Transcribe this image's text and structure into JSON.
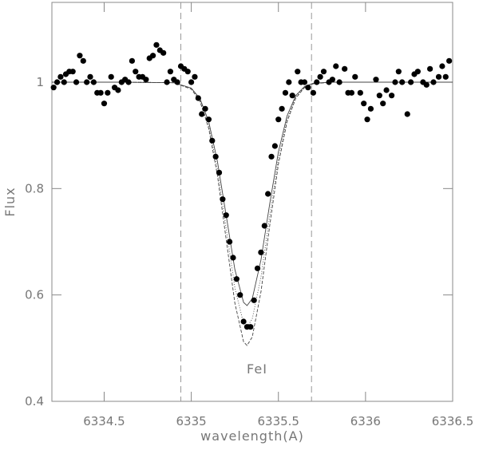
{
  "chart_data": {
    "type": "scatter",
    "x_label": "wavelength(A)",
    "y_label": "Flux",
    "annotation": "FeI",
    "xlim": [
      6334.2,
      6336.5
    ],
    "ylim": [
      0.4,
      1.15
    ],
    "xticks": [
      6334.5,
      6335,
      6335.5,
      6336,
      6336.5
    ],
    "yticks": [
      0.4,
      0.6,
      0.8,
      1
    ],
    "vlines": [
      6334.94,
      6335.69
    ],
    "series": [
      {
        "type": "scatter",
        "color": "#000000",
        "x": [
          6334.21,
          6334.23,
          6334.25,
          6334.27,
          6334.28,
          6334.3,
          6334.32,
          6334.34,
          6334.36,
          6334.38,
          6334.4,
          6334.42,
          6334.44,
          6334.46,
          6334.48,
          6334.5,
          6334.52,
          6334.54,
          6334.56,
          6334.58,
          6334.6,
          6334.62,
          6334.64,
          6334.66,
          6334.68,
          6334.7,
          6334.72,
          6334.74,
          6334.76,
          6334.78,
          6334.8,
          6334.82,
          6334.84,
          6334.86,
          6334.88,
          6334.9,
          6334.92,
          6334.94,
          6334.96,
          6334.98,
          6335.0,
          6335.02,
          6335.04,
          6335.06,
          6335.08,
          6335.1,
          6335.12,
          6335.14,
          6335.16,
          6335.18,
          6335.2,
          6335.22,
          6335.24,
          6335.26,
          6335.28,
          6335.3,
          6335.32,
          6335.34,
          6335.36,
          6335.38,
          6335.4,
          6335.42,
          6335.44,
          6335.46,
          6335.48,
          6335.5,
          6335.52,
          6335.54,
          6335.56,
          6335.58,
          6335.61,
          6335.63,
          6335.65,
          6335.67,
          6335.7,
          6335.72,
          6335.74,
          6335.76,
          6335.79,
          6335.81,
          6335.83,
          6335.85,
          6335.88,
          6335.9,
          6335.92,
          6335.94,
          6335.97,
          6335.99,
          6336.01,
          6336.03,
          6336.06,
          6336.08,
          6336.1,
          6336.12,
          6336.15,
          6336.17,
          6336.19,
          6336.21,
          6336.24,
          6336.26,
          6336.28,
          6336.3,
          6336.33,
          6336.35,
          6336.37,
          6336.39,
          6336.42,
          6336.44,
          6336.46,
          6336.48
        ],
        "values": [
          0.99,
          1.0,
          1.01,
          1.0,
          1.015,
          1.02,
          1.02,
          1.0,
          1.05,
          1.04,
          1.0,
          1.01,
          1.0,
          0.98,
          0.98,
          0.96,
          0.98,
          1.01,
          0.99,
          0.985,
          1.0,
          1.005,
          1.0,
          1.04,
          1.02,
          1.01,
          1.01,
          1.005,
          1.045,
          1.05,
          1.07,
          1.06,
          1.055,
          1.0,
          1.02,
          1.005,
          1.0,
          1.03,
          1.025,
          1.02,
          1.0,
          1.01,
          0.97,
          0.94,
          0.95,
          0.93,
          0.89,
          0.86,
          0.83,
          0.78,
          0.75,
          0.7,
          0.67,
          0.63,
          0.6,
          0.55,
          0.54,
          0.54,
          0.59,
          0.65,
          0.68,
          0.73,
          0.79,
          0.86,
          0.88,
          0.93,
          0.95,
          0.98,
          1.0,
          0.975,
          1.02,
          1.0,
          1.0,
          0.99,
          0.98,
          1.0,
          1.01,
          1.02,
          1.0,
          1.005,
          1.03,
          1.0,
          1.025,
          0.98,
          0.98,
          1.01,
          0.98,
          0.96,
          0.93,
          0.95,
          1.005,
          0.975,
          0.96,
          0.985,
          0.975,
          1.0,
          1.02,
          1.0,
          0.94,
          1.0,
          1.015,
          1.02,
          1.0,
          0.995,
          1.025,
          1.0,
          1.01,
          1.03,
          1.01,
          1.04
        ]
      },
      {
        "type": "line",
        "color": "#444444",
        "x": [
          6334.2,
          6334.6,
          6334.9,
          6335.0,
          6335.05,
          6335.1,
          6335.15,
          6335.2,
          6335.25,
          6335.3,
          6335.32,
          6335.35,
          6335.4,
          6335.45,
          6335.5,
          6335.55,
          6335.6,
          6335.65,
          6335.7,
          6335.8,
          6336.1,
          6336.5
        ],
        "values": [
          1,
          1,
          0.999,
          0.987,
          0.964,
          0.913,
          0.825,
          0.705,
          0.585,
          0.512,
          0.505,
          0.521,
          0.606,
          0.73,
          0.846,
          0.926,
          0.97,
          0.99,
          0.997,
          1,
          1,
          1
        ]
      },
      {
        "type": "line",
        "color": "#444444",
        "x": [
          6334.2,
          6334.6,
          6334.9,
          6335.0,
          6335.05,
          6335.1,
          6335.15,
          6335.2,
          6335.25,
          6335.3,
          6335.32,
          6335.35,
          6335.4,
          6335.45,
          6335.5,
          6335.55,
          6335.6,
          6335.65,
          6335.7,
          6335.8,
          6336.1,
          6336.5
        ],
        "values": [
          1,
          1,
          0.999,
          0.988,
          0.966,
          0.919,
          0.837,
          0.726,
          0.614,
          0.546,
          0.54,
          0.555,
          0.634,
          0.749,
          0.856,
          0.931,
          0.972,
          0.991,
          0.997,
          1,
          1,
          1
        ]
      },
      {
        "type": "line",
        "color": "#444444",
        "x": [
          6334.2,
          6334.6,
          6334.9,
          6335.0,
          6335.05,
          6335.1,
          6335.15,
          6335.2,
          6335.25,
          6335.3,
          6335.32,
          6335.35,
          6335.4,
          6335.45,
          6335.5,
          6335.55,
          6335.6,
          6335.65,
          6335.7,
          6335.8,
          6336.1,
          6336.5
        ],
        "values": [
          1,
          1,
          0.999,
          0.989,
          0.969,
          0.926,
          0.851,
          0.75,
          0.648,
          0.586,
          0.58,
          0.593,
          0.666,
          0.771,
          0.869,
          0.937,
          0.975,
          0.992,
          0.998,
          1,
          1,
          1
        ]
      }
    ]
  }
}
